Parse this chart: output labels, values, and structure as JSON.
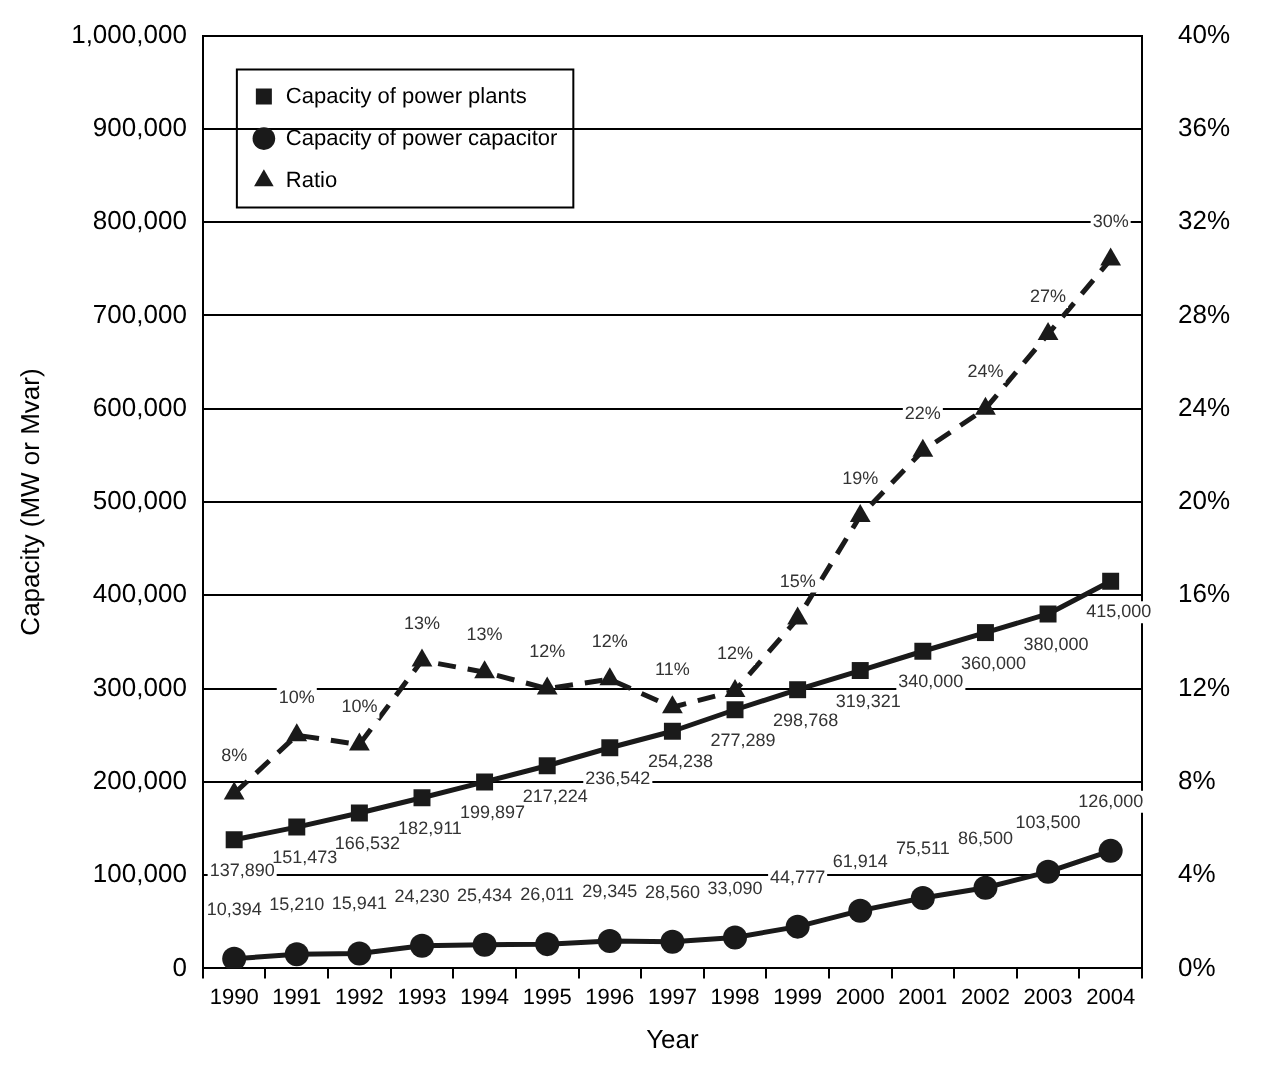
{
  "chart_data": {
    "type": "line",
    "xlabel": "Year",
    "ylabel": "Capacity (MW or Mvar)",
    "categories": [
      "1990",
      "1991",
      "1992",
      "1993",
      "1994",
      "1995",
      "1996",
      "1997",
      "1998",
      "1999",
      "2000",
      "2001",
      "2002",
      "2003",
      "2004"
    ],
    "series": [
      {
        "name": "Capacity of power plants",
        "color": "#1a1a1a",
        "marker": "square",
        "line_style": "solid",
        "values": [
          137890,
          151473,
          166532,
          182911,
          199897,
          217224,
          236542,
          254238,
          277289,
          298768,
          319321,
          340000,
          360000,
          380000,
          415000
        ],
        "value_labels": [
          "137,890",
          "151,473",
          "166,532",
          "182,911",
          "199,897",
          "217,224",
          "236,542",
          "254,238",
          "277,289",
          "298,768",
          "319,321",
          "340,000",
          "360,000",
          "380,000",
          "415,000"
        ]
      },
      {
        "name": "Capacity of power capacitor",
        "color": "#1a1a1a",
        "marker": "circle",
        "line_style": "solid",
        "values": [
          10394,
          15210,
          15941,
          24230,
          25434,
          26011,
          29345,
          28560,
          33090,
          44777,
          61914,
          75511,
          86500,
          103500,
          126000
        ],
        "value_labels": [
          "10,394",
          "15,210",
          "15,941",
          "24,230",
          "25,434",
          "26,011",
          "29,345",
          "28,560",
          "33,090",
          "44,777",
          "61,914",
          "75,511",
          "86,500",
          "103,500",
          "126,000"
        ]
      },
      {
        "name": "Ratio",
        "color": "#1a1a1a",
        "marker": "triangle",
        "line_style": "dashed",
        "axis": "y2",
        "values": [
          7.5,
          10.0,
          9.6,
          13.2,
          12.7,
          12.0,
          12.4,
          11.2,
          11.9,
          15.0,
          19.4,
          22.2,
          24.0,
          27.2,
          30.4
        ],
        "value_labels": [
          "8%",
          "10%",
          "10%",
          "13%",
          "13%",
          "12%",
          "12%",
          "11%",
          "12%",
          "15%",
          "19%",
          "22%",
          "24%",
          "27%",
          "30%"
        ]
      }
    ],
    "ylim": [
      0,
      1000000
    ],
    "yticks": [
      0,
      {
        "value": 100000,
        "label": "100,000"
      },
      {
        "value": 200000,
        "label": "200,000"
      },
      {
        "value": 300000,
        "label": "300,000"
      },
      {
        "value": 400000,
        "label": "400,000"
      },
      {
        "value": 500000,
        "label": "500,000"
      },
      {
        "value": 600000,
        "label": "600,000"
      },
      {
        "value": 700000,
        "label": "700,000"
      },
      {
        "value": 800000,
        "label": "800,000"
      },
      {
        "value": 900000,
        "label": "900,000"
      },
      {
        "value": 1000000,
        "label": "1,000,000"
      }
    ],
    "y2lim": [
      0,
      40
    ],
    "y2ticks": [
      {
        "value": 0,
        "label": "0%"
      },
      {
        "value": 4,
        "label": "4%"
      },
      {
        "value": 8,
        "label": "8%"
      },
      {
        "value": 12,
        "label": "12%"
      },
      {
        "value": 16,
        "label": "16%"
      },
      {
        "value": 20,
        "label": "20%"
      },
      {
        "value": 24,
        "label": "24%"
      },
      {
        "value": 28,
        "label": "28%"
      },
      {
        "value": 32,
        "label": "32%"
      },
      {
        "value": 36,
        "label": "36%"
      },
      {
        "value": 40,
        "label": "40%"
      }
    ],
    "grid": "y",
    "legend": "top left"
  }
}
